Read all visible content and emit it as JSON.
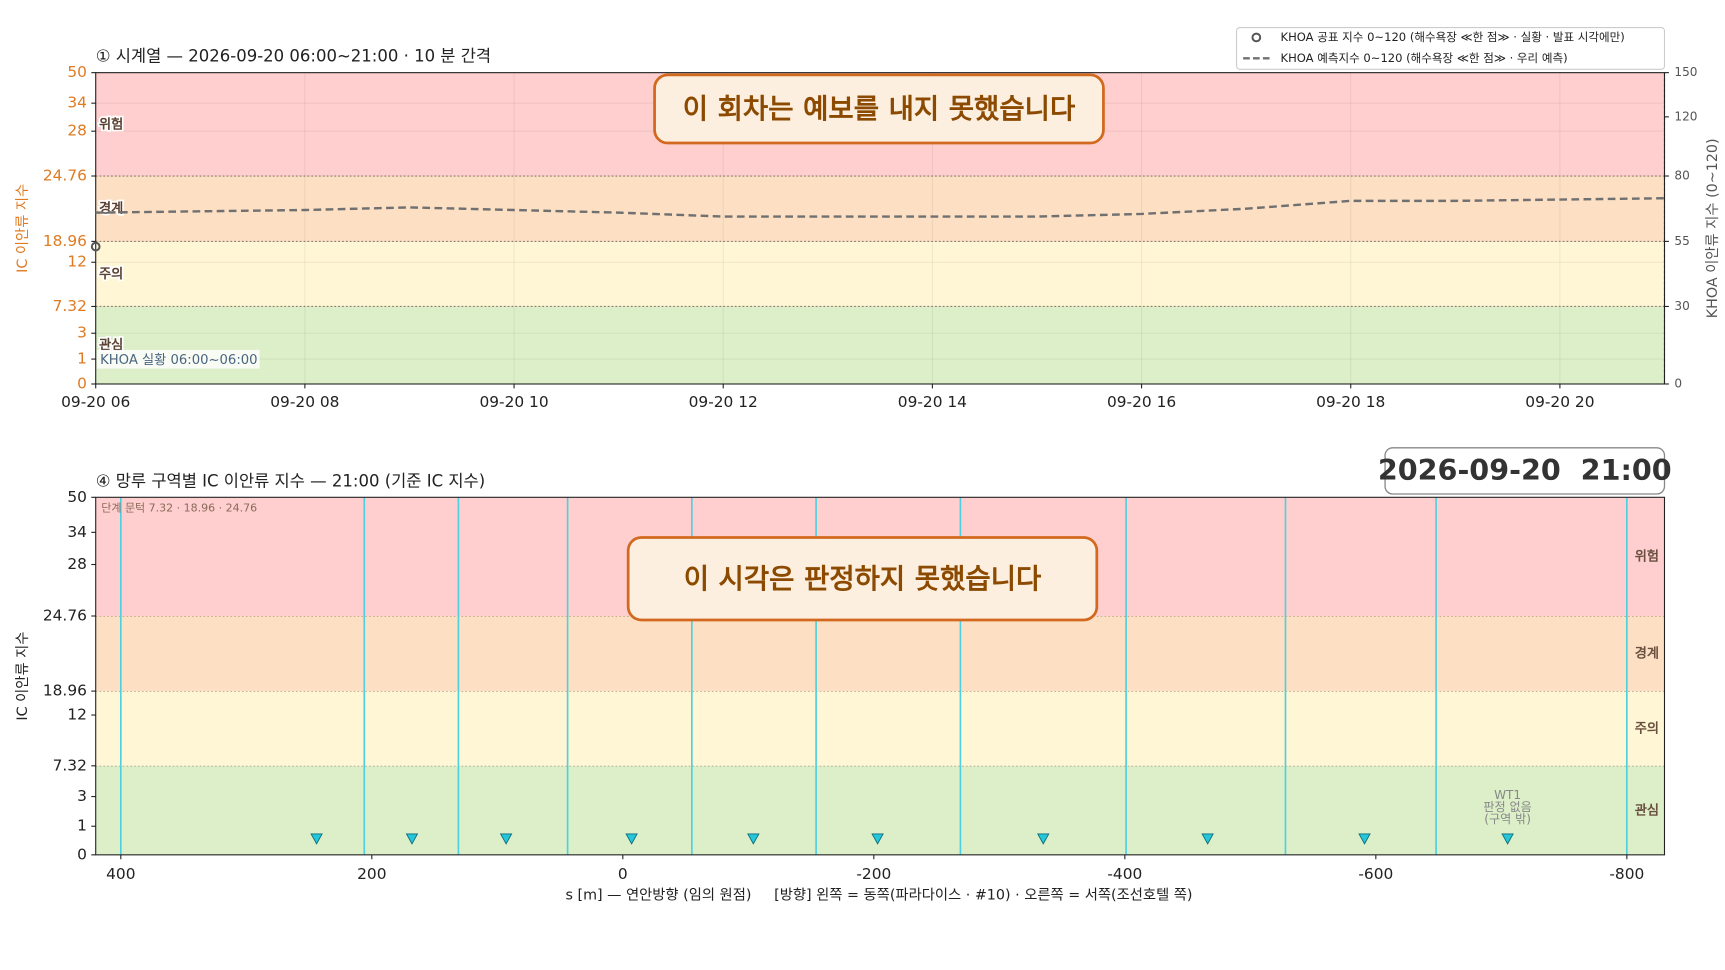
{
  "chart_data": [
    {
      "type": "line",
      "title": "① 시계열 — 2026-09-20 06:00~21:00 · 10 분 간격",
      "ylabel": "IC 이안류 지수",
      "y2label": "KHOA 이안류 지수 (0~120)",
      "xlim": [
        6,
        21
      ],
      "xticks": [
        {
          "value": 6,
          "label": "09-20 06"
        },
        {
          "value": 8,
          "label": "09-20 08"
        },
        {
          "value": 10,
          "label": "09-20 10"
        },
        {
          "value": 12,
          "label": "09-20 12"
        },
        {
          "value": 14,
          "label": "09-20 14"
        },
        {
          "value": 16,
          "label": "09-20 16"
        },
        {
          "value": 18,
          "label": "09-20 18"
        },
        {
          "value": 20,
          "label": "09-20 20"
        }
      ],
      "ylim": [
        0,
        50
      ],
      "yticks": [
        0,
        1,
        3,
        7.32,
        12,
        18.96,
        24.76,
        28,
        34,
        50
      ],
      "y2lim": [
        0,
        150
      ],
      "y2ticks": [
        0,
        30,
        55,
        80,
        120,
        150
      ],
      "grid": true,
      "zones": [
        {
          "label": "관심",
          "from": 0,
          "to": 7.32,
          "color": "#dcefc9"
        },
        {
          "label": "주의",
          "from": 7.32,
          "to": 18.96,
          "color": "#fff6d5"
        },
        {
          "label": "경계",
          "from": 18.96,
          "to": 24.76,
          "color": "#fde0c4"
        },
        {
          "label": "위험",
          "from": 24.76,
          "to": 50,
          "color": "#ffcfcf"
        }
      ],
      "series": [
        {
          "name": "KHOA 공표 지수 0~120 (해수욕장 ≪한 점≫ · 실황 · 발표 시각에만)",
          "color": "#555555",
          "axis": "y2",
          "style": "marker",
          "x": [
            6
          ],
          "values": [
            53
          ]
        },
        {
          "name": "KHOA 예측지수 0~120 (해수욕장 ≪한 점≫ · 우리 예측)",
          "color": "#707070",
          "axis": "y2",
          "style": "dashed",
          "x": [
            6,
            7,
            8,
            9,
            10,
            11,
            12,
            13,
            14,
            15,
            16,
            17,
            18,
            19,
            20,
            21
          ],
          "values": [
            66,
            66.5,
            67,
            68,
            67,
            66,
            64.5,
            64.5,
            64.5,
            64.5,
            65.5,
            67.5,
            70.5,
            70.5,
            71,
            71.5
          ]
        }
      ],
      "annotation": "이 회차는 예보를 내지 못했습니다",
      "note": "KHOA 실황 06:00~06:00"
    },
    {
      "type": "zones",
      "title": "④ 망루 구역별 IC 이안류 지수 — 21:00   (기준 IC 지수)",
      "timestamp": "2026-09-20  21:00",
      "note": "단계 문턱 7.32 · 18.96 · 24.76",
      "ylabel": "IC 이안류 지수",
      "xlabel": "s [m] — 연안방향 (임의 원점)     [방향] 왼쪽 = 동쪽(파라다이스 · #10) · 오른쪽 = 서쪽(조선호텔 쪽)",
      "xlim": [
        420,
        -830
      ],
      "xticks": [
        400,
        200,
        0,
        -200,
        -400,
        -600,
        -800
      ],
      "ylim": [
        0,
        50
      ],
      "yticks": [
        0,
        1,
        3,
        7.32,
        12,
        18.96,
        24.76,
        28,
        34,
        50
      ],
      "zones": [
        {
          "label": "관심",
          "from": 0,
          "to": 7.32,
          "color": "#dcefc9"
        },
        {
          "label": "주의",
          "from": 7.32,
          "to": 18.96,
          "color": "#fff6d5"
        },
        {
          "label": "경계",
          "from": 18.96,
          "to": 24.76,
          "color": "#fde0c4"
        },
        {
          "label": "위험",
          "from": 24.76,
          "to": 50,
          "color": "#ffcfcf"
        }
      ],
      "boundaries": [
        400,
        206,
        131,
        44,
        -55,
        -154,
        -269,
        -401,
        -528,
        -648,
        -800
      ],
      "boundary_color": "#4dd0e1",
      "towers": {
        "x": [
          244,
          168,
          93,
          -7,
          -104,
          -203,
          -335,
          -466,
          -591,
          -705
        ],
        "color": "#26c6da"
      },
      "tower_note": {
        "x": -705,
        "lines": [
          "WT1",
          "판정 없음",
          "(구역 밖)"
        ]
      },
      "annotation": "이 시각은 판정하지 못했습니다"
    }
  ]
}
